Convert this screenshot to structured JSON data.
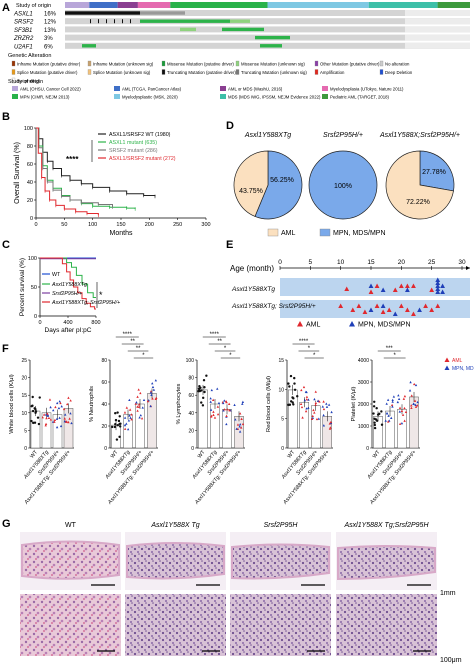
{
  "panels": {
    "A": "A",
    "B": "B",
    "C": "C",
    "D": "D",
    "E": "E",
    "F": "F",
    "G": "G"
  },
  "panelA": {
    "study_of_origin_label": "Study of origin",
    "genes": [
      {
        "name": "ASXL1",
        "pct": "16%"
      },
      {
        "name": "SRSF2",
        "pct": "12%"
      },
      {
        "name": "SF3B1",
        "pct": "13%"
      },
      {
        "name": "ZRZR2",
        "pct": "3%"
      },
      {
        "name": "U2AF1",
        "pct": "6%"
      }
    ],
    "genetic_alteration_label": "Genetic Alteration",
    "alterations": [
      {
        "label": "Inframe Mutation (putative driver)",
        "color": "#993404"
      },
      {
        "label": "Inframe Mutation (unknown sig)",
        "color": "#c8a26e"
      },
      {
        "label": "Missense Mutation (putative driver)",
        "color": "#1a9a3a"
      },
      {
        "label": "Missense Mutation (unknown sig)",
        "color": "#8fd27e"
      },
      {
        "label": "Other Mutation (putative driver)",
        "color": "#8b3fa8"
      },
      {
        "label": "No alteration",
        "color": "#cccccc"
      },
      {
        "label": "Splice Mutation (putative driver)",
        "color": "#e69a1a"
      },
      {
        "label": "Splice Mutation (unknown sig)",
        "color": "#f3c27a"
      },
      {
        "label": "Truncating Mutation (putative driver)",
        "color": "#111111"
      },
      {
        "label": "Truncating Mutation (unknown sig)",
        "color": "#777777"
      },
      {
        "label": "Amplification",
        "color": "#e0281e"
      },
      {
        "label": "Deep Deletion",
        "color": "#1f4fd1"
      },
      {
        "label": "Not profiled",
        "color": "#ffffff"
      }
    ],
    "study_of_origin_legend_label": "Study of origin",
    "studies": [
      {
        "label": "AML (OHSU, Cancer Cell 2022)",
        "color": "#b8a6d9"
      },
      {
        "label": "AML (TCGA, PanCancer Atlas)",
        "color": "#3f6fc7"
      },
      {
        "label": "AML or MDS (WashU, 2016)",
        "color": "#8a3f91"
      },
      {
        "label": "Myelodysplasia (UTokyo, Nature 2011)",
        "color": "#e56ab0"
      },
      {
        "label": "MPN (CIMR, NEJM 2013)",
        "color": "#29b24a"
      },
      {
        "label": "Myelodysplastic (MSK, 2020)",
        "color": "#7ec8e3"
      },
      {
        "label": "MDS (MDS IWG, IPSSM, NEJM Evidence 2022)",
        "color": "#3dbfa8"
      },
      {
        "label": "Pediatric AML (TARGET, 2018)",
        "color": "#3d9a3d"
      }
    ]
  },
  "panelB": {
    "ylabel": "Overall Survival (%)",
    "xlabel": "Months",
    "sig": "****",
    "legend": [
      {
        "label": "ASXL1/SRSF2 WT (1980)",
        "color": "#222222"
      },
      {
        "label": "ASXL1 mutant (635)",
        "color": "#2db34a"
      },
      {
        "label": "SRSF2 mutant (286)",
        "color": "#777777"
      },
      {
        "label": "ASXL1/SRSF2 mutant (272)",
        "color": "#e0282e"
      }
    ],
    "yticks": [
      "0",
      "20",
      "40",
      "60",
      "80",
      "100"
    ],
    "xticks": [
      "0",
      "50",
      "100",
      "150",
      "200",
      "250",
      "300"
    ]
  },
  "panelC": {
    "ylabel": "Percent survival (%)",
    "xlabel": "Days after pI:pC",
    "sig": "*",
    "legend": [
      {
        "label": "WT",
        "color": "#1f4fd1"
      },
      {
        "label": "Asxl1Y588XTg",
        "color": "#2db34a"
      },
      {
        "label": "Srsf2P95H/+",
        "color": "#7b3fa0"
      },
      {
        "label": "Asxl1Y588XTg; Srsf2P95H/+",
        "color": "#e0282e"
      }
    ],
    "yticks": [
      "0",
      "50",
      "100"
    ],
    "xticks": [
      "0",
      "400",
      "800"
    ]
  },
  "panelD": {
    "pies": [
      {
        "title": "Asxl1Y588XTg",
        "aml": 43.75,
        "mpn": 56.25,
        "aml_label": "43.75%",
        "mpn_label": "56.25%"
      },
      {
        "title": "Srsf2P95H/+",
        "aml": 0,
        "mpn": 100,
        "mpn_label": "100%"
      },
      {
        "title": "Asxl1Y588X;Srsf2P95H/+",
        "aml": 72.22,
        "mpn": 27.78,
        "aml_label": "72.22%",
        "mpn_label": "27.78%"
      }
    ],
    "legend": [
      {
        "label": "AML",
        "color": "#fbe0bf"
      },
      {
        "label": "MPN, MDS/MPN",
        "color": "#7aa9ea"
      }
    ]
  },
  "panelE": {
    "axis_label": "Age (month)",
    "ticks": [
      "0",
      "5",
      "10",
      "15",
      "20",
      "25",
      "30"
    ],
    "rows": [
      "Asxl1Y588XTg",
      "Asxl1Y588XTg; Srsf2P95H/+"
    ],
    "legend": [
      {
        "label": "AML",
        "color": "#e0282e"
      },
      {
        "label": "MPN, MDS/MPN",
        "color": "#1f3fb8"
      }
    ]
  },
  "panelF": {
    "plots": [
      {
        "ylabel": "White blood cells (K/μl)",
        "ticks": [
          "0",
          "5",
          "10",
          "15",
          "20",
          "25"
        ]
      },
      {
        "ylabel": "% Neutrophils",
        "ticks": [
          "0",
          "20",
          "40",
          "60",
          "80"
        ],
        "sigs": [
          "****",
          "**",
          "**",
          "*"
        ]
      },
      {
        "ylabel": "% Lymphocytes",
        "ticks": [
          "0",
          "20",
          "40",
          "60",
          "80",
          "100"
        ],
        "sigs": [
          "****",
          "**",
          "*",
          "*"
        ]
      },
      {
        "ylabel": "Red blood cells (M/μl)",
        "ticks": [
          "0",
          "5",
          "10",
          "15"
        ],
        "sigs": [
          "****",
          "*",
          "*"
        ]
      },
      {
        "ylabel": "Platelet (K/μl)",
        "ticks": [
          "0",
          "1000",
          "2000",
          "3000",
          "4000"
        ],
        "sigs": [
          "***",
          "*"
        ]
      }
    ],
    "groups": [
      "WT",
      "Asxl1Y588XTg",
      "Srsf2P95H/+",
      "Asxl1Y588XTg; Srsf2P95H/+"
    ],
    "legend": [
      {
        "label": "AML",
        "color": "#e0282e"
      },
      {
        "label": "MPN, MDS/MPN",
        "color": "#1f3fb8"
      }
    ]
  },
  "panelG": {
    "columns": [
      "WT",
      "Asxl1Y588X Tg",
      "Srsf2P95H",
      "Asxl1Y588X Tg;Srsf2P95H"
    ],
    "scale_top": "1mm",
    "scale_bottom": "100μm"
  }
}
